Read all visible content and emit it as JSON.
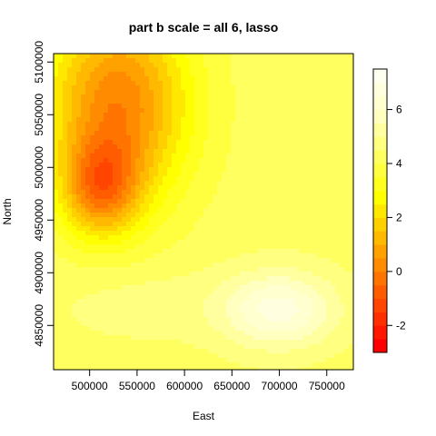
{
  "chart_data": {
    "type": "heatmap",
    "title": "part b scale = all 6, lasso",
    "xlabel": "East",
    "ylabel": "North",
    "xlim": [
      462000,
      778000
    ],
    "ylim": [
      4808000,
      5108000
    ],
    "x_ticks": [
      500000,
      550000,
      600000,
      650000,
      700000,
      750000
    ],
    "y_ticks": [
      4850000,
      4900000,
      4950000,
      5000000,
      5050000,
      5100000
    ],
    "colorbar": {
      "range": [
        -3,
        7.5
      ],
      "ticks": [
        -2,
        0,
        2,
        4,
        6
      ],
      "levels": [
        -3,
        -2.5,
        -2,
        -1.5,
        -1,
        -0.5,
        0,
        0.5,
        1,
        1.5,
        2,
        2.5,
        3,
        3.5,
        4,
        4.5,
        5,
        5.5,
        6,
        6.5,
        7,
        7.5
      ],
      "colors": [
        "#FF0000",
        "#FF1700",
        "#FF2E00",
        "#FF4500",
        "#FF5C00",
        "#FF7300",
        "#FF8B00",
        "#FFA200",
        "#FFB900",
        "#FFD000",
        "#FFE800",
        "#FFFF00",
        "#FFFF20",
        "#FFFF40",
        "#FFFF60",
        "#FFFF80",
        "#FFFFA0",
        "#FFFFC0",
        "#FFFFD0",
        "#FFFFE0",
        "#FFFFF0"
      ]
    },
    "grid": false,
    "legend": "colorbar-right",
    "surface": {
      "base": 4.3,
      "terms": [
        {
          "type": "gauss",
          "x": 512000,
          "y": 4980000,
          "sx": 40000,
          "sy": 45000,
          "amp": -3.4
        },
        {
          "type": "gauss",
          "x": 530000,
          "y": 5060000,
          "sx": 75000,
          "sy": 95000,
          "amp": -4.2
        },
        {
          "type": "gauss",
          "x": 700000,
          "y": 4865000,
          "sx": 60000,
          "sy": 36000,
          "amp": 2.4
        },
        {
          "type": "gauss",
          "x": 560000,
          "y": 4870000,
          "sx": 95000,
          "sy": 35000,
          "amp": 0.5
        }
      ]
    }
  }
}
